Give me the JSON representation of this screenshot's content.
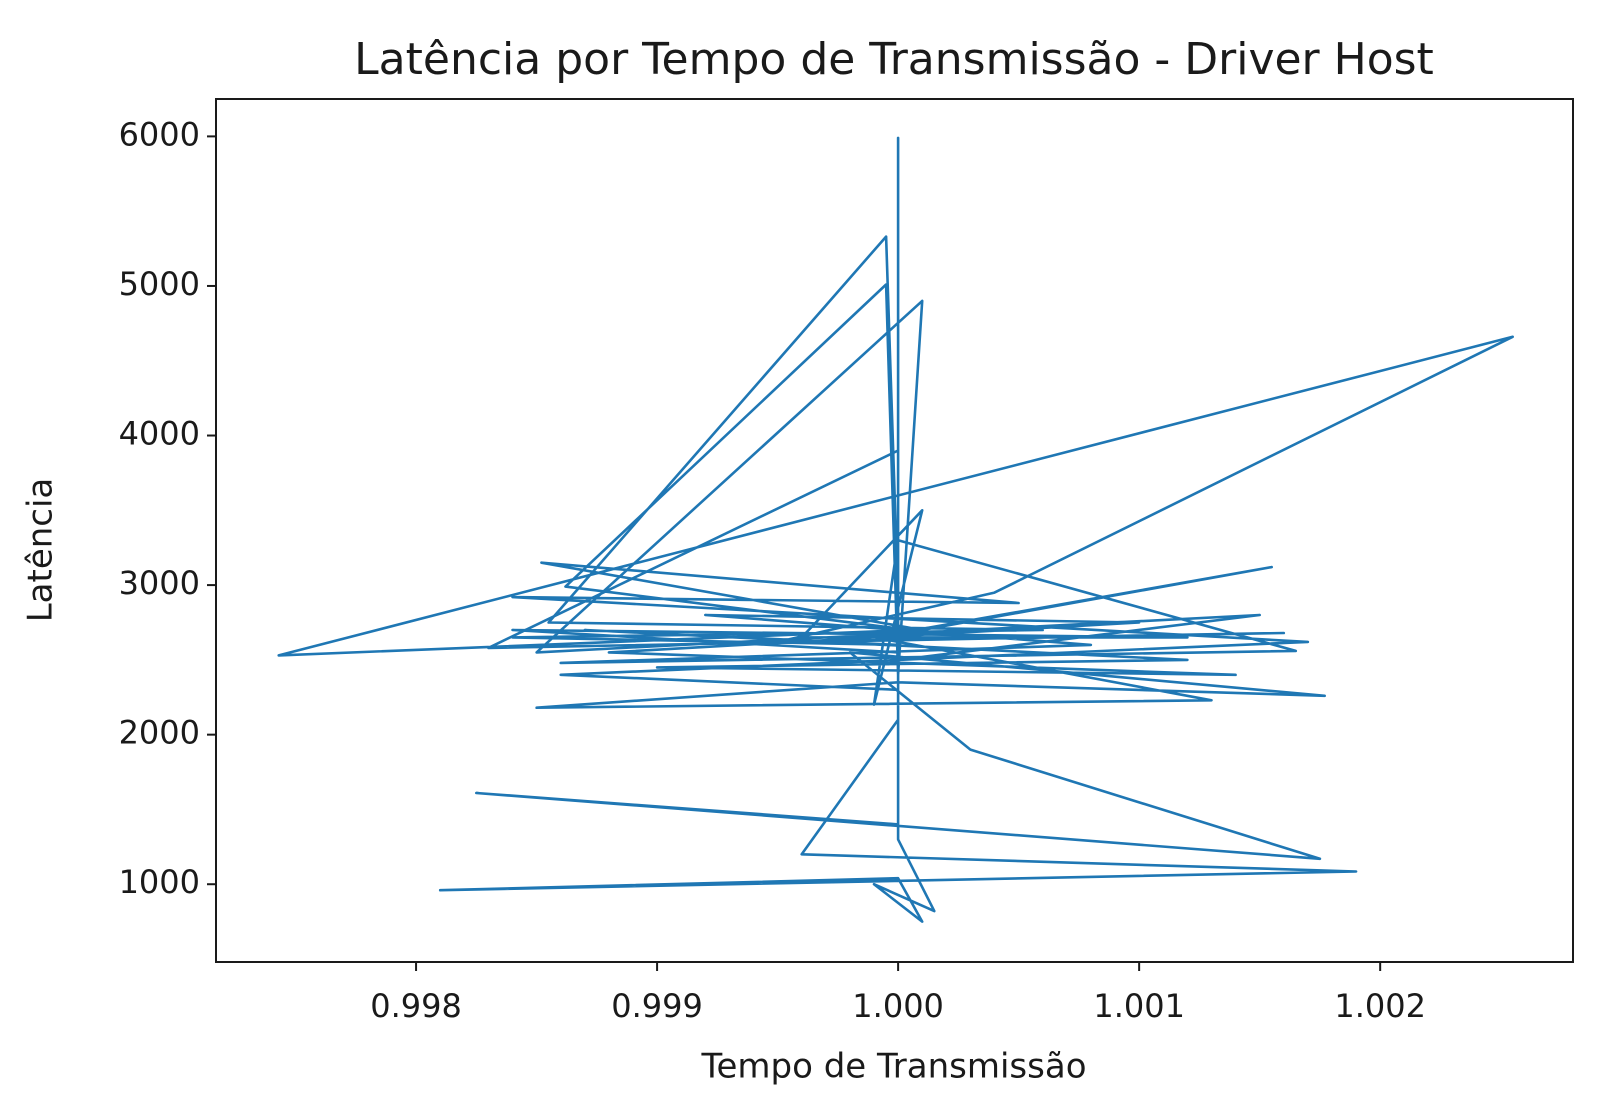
{
  "chart_data": {
    "type": "line",
    "title": "Latência por Tempo de Transmissão - Driver Host",
    "x_label": "Tempo de Transmissão",
    "y_label": "Latência",
    "xlim": [
      0.99717,
      1.0028
    ],
    "ylim": [
      480,
      6250
    ],
    "xticks": [
      0.998,
      0.999,
      {
        "value": 1,
        "label": "1.000"
      },
      1.001,
      1.002
    ],
    "yticks": [
      1000,
      2000,
      3000,
      4000,
      5000,
      6000
    ],
    "series": [
      {
        "color": "#1f77b4",
        "x": [
          1.0,
          0.9984,
          1.0006,
          0.99855,
          0.99995,
          1.0,
          1.0,
          1.0,
          1.0015,
          0.9985,
          1.0001,
          1.0,
          0.99995,
          0.99862,
          1.00005,
          0.99743,
          1.00255,
          1.0004,
          0.9995,
          1.0016,
          0.9983,
          1.0,
          1.0,
          0.9986,
          1.0017,
          0.9984,
          1.0005,
          0.99852,
          1.0001,
          1.00155,
          0.9999,
          1.0013,
          0.9985,
          1.0,
          1.00177,
          0.9998,
          1.0003,
          1.00175,
          0.99825,
          1.0,
          1.0,
          0.9996,
          1.0019,
          0.9981,
          1.0,
          1.0001,
          0.9999,
          1.00015,
          1.0,
          1.0,
          0.9987,
          1.0012,
          0.999,
          1.0014,
          0.9988,
          1.001,
          0.9992,
          1.0008,
          0.9986,
          1.00165,
          1.0,
          0.9999,
          1.0001,
          0.9996,
          1.0012,
          0.9984,
          1.0
        ],
        "values": [
          2600,
          2650,
          2700,
          2750,
          5330,
          2900,
          5990,
          2500,
          2800,
          2550,
          4900,
          2400,
          5010,
          2990,
          2700,
          2530,
          4660,
          2950,
          2620,
          2680,
          2580,
          3900,
          2300,
          2400,
          2620,
          2920,
          2880,
          3150,
          2700,
          3120,
          2650,
          2230,
          2180,
          2350,
          2260,
          2550,
          1900,
          1170,
          1610,
          1400,
          2100,
          1200,
          1085,
          960,
          1040,
          750,
          1000,
          820,
          1300,
          2600,
          2700,
          2500,
          2450,
          2400,
          2550,
          2750,
          2800,
          2600,
          2480,
          2560,
          3300,
          2200,
          3500,
          2650,
          2650,
          2700,
          2550
        ]
      }
    ]
  }
}
